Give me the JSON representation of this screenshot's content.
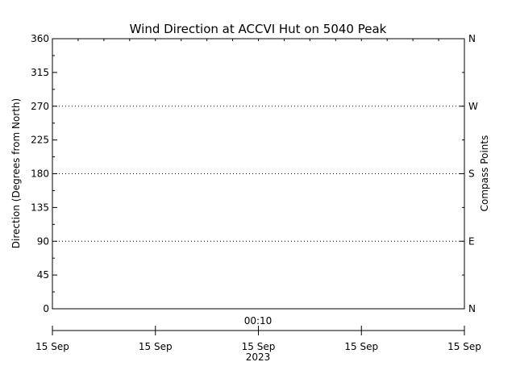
{
  "chart_data": {
    "type": "line",
    "title": "Wind Direction at ACCVI Hut on 5040 Peak",
    "ylabel": "Direction (Degrees from North)",
    "y2label": "Compass Points",
    "ylim": [
      0,
      360
    ],
    "yticks": [
      {
        "value": 0,
        "label": "0"
      },
      {
        "value": 45,
        "label": "45"
      },
      {
        "value": 90,
        "label": "90"
      },
      {
        "value": 135,
        "label": "135"
      },
      {
        "value": 180,
        "label": "180"
      },
      {
        "value": 225,
        "label": "225"
      },
      {
        "value": 270,
        "label": "270"
      },
      {
        "value": 315,
        "label": "315"
      },
      {
        "value": 360,
        "label": "360"
      }
    ],
    "compass_ticks": [
      {
        "value": 0,
        "label": "N"
      },
      {
        "value": 90,
        "label": "E"
      },
      {
        "value": 180,
        "label": "S"
      },
      {
        "value": 270,
        "label": "W"
      },
      {
        "value": 360,
        "label": "N"
      }
    ],
    "gridlines_y": [
      90,
      180,
      270
    ],
    "x_marker": {
      "label": "00:10"
    },
    "xticks": [
      {
        "label": "15 Sep"
      },
      {
        "label": "15 Sep"
      },
      {
        "label": "15 Sep"
      },
      {
        "label": "15 Sep"
      },
      {
        "label": "15 Sep"
      }
    ],
    "x_year_label": "2023",
    "series": [
      {
        "values": []
      }
    ]
  }
}
